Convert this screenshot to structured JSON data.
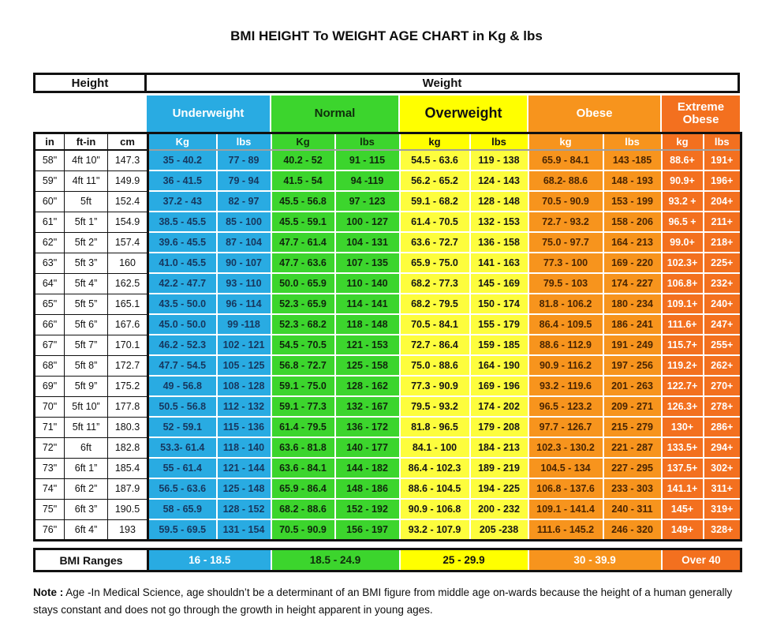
{
  "colors": {
    "underweight_blue": "#29ABE2",
    "normal_green": "#3CD52D",
    "overweight_yellow": "#FFFF00",
    "overweight_cell_yellow": "#FDFD3D",
    "obese_orange": "#F7941D",
    "extreme_obese_orange": "#F3701F",
    "underweight_text": "#17375E",
    "obese_text": "#4A2502",
    "border_black": "#111111",
    "grid_white": "#FFFFFF"
  },
  "chart_data": {
    "type": "table",
    "title": "BMI HEIGHT To WEIGHT AGE CHART in Kg & lbs",
    "header": {
      "height_label": "Height",
      "weight_label": "Weight"
    },
    "height_columns": [
      "in",
      "ft-in",
      "cm"
    ],
    "categories": [
      {
        "label": "Underweight",
        "unit_kg": "Kg",
        "unit_lbs": "lbs",
        "bmi_range": "16 - 18.5"
      },
      {
        "label": "Normal",
        "unit_kg": "Kg",
        "unit_lbs": "lbs",
        "bmi_range": "18.5 - 24.9"
      },
      {
        "label": "Overweight",
        "unit_kg": "kg",
        "unit_lbs": "lbs",
        "bmi_range": "25 - 29.9"
      },
      {
        "label": "Obese",
        "unit_kg": "kg",
        "unit_lbs": "lbs",
        "bmi_range": "30 - 39.9"
      },
      {
        "label": "Extreme Obese",
        "unit_kg": "kg",
        "unit_lbs": "lbs",
        "bmi_range": "Over 40"
      }
    ],
    "bmi_ranges_label": "BMI Ranges",
    "rows": [
      {
        "in": "58\"",
        "ft_in": "4ft 10\"",
        "cm": "147.3",
        "weights": [
          "35 - 40.2",
          "77 - 89",
          "40.2 - 52",
          "91 - 115",
          "54.5 - 63.6",
          "119 - 138",
          "65.9 - 84.1",
          "143 -185",
          "88.6+",
          "191+"
        ]
      },
      {
        "in": "59\"",
        "ft_in": "4ft 11\"",
        "cm": "149.9",
        "weights": [
          "36 - 41.5",
          "79 -  94",
          "41.5 - 54",
          "94 -119",
          "56.2 - 65.2",
          "124 - 143",
          "68.2- 88.6",
          "148 - 193",
          "90.9+",
          "196+"
        ]
      },
      {
        "in": "60\"",
        "ft_in": "5ft",
        "cm": "152.4",
        "weights": [
          "37.2 - 43",
          "82 - 97",
          "45.5 - 56.8",
          "97 -  123",
          "59.1  - 68.2",
          "128 - 148",
          "70.5 - 90.9",
          "153 - 199",
          "93.2 +",
          "204+"
        ]
      },
      {
        "in": "61\"",
        "ft_in": "5ft 1”",
        "cm": "154.9",
        "weights": [
          "38.5 - 45.5",
          "85 -  100",
          "45.5 - 59.1",
          "100 - 127",
          "61.4 - 70.5",
          "132 - 153",
          "72.7 - 93.2",
          "158 - 206",
          "96.5 +",
          "211+"
        ]
      },
      {
        "in": "62\"",
        "ft_in": "5ft 2”",
        "cm": "157.4",
        "weights": [
          "39.6 -  45.5",
          "87 - 104",
          "47.7 - 61.4",
          "104 - 131",
          "63.6 - 72.7",
          "136 - 158",
          "75.0 -  97.7",
          "164 - 213",
          "99.0+",
          "218+"
        ]
      },
      {
        "in": "63\"",
        "ft_in": "5ft 3”",
        "cm": "160",
        "weights": [
          "41.0 - 45.5",
          "90 - 107",
          "47.7  - 63.6",
          "107 - 135",
          "65.9 - 75.0",
          "141 - 163",
          "77.3 - 100",
          "169 - 220",
          "102.3+",
          "225+"
        ]
      },
      {
        "in": "64\"",
        "ft_in": "5ft 4”",
        "cm": "162.5",
        "weights": [
          "42.2 - 47.7",
          "93 - 110",
          "50.0 - 65.9",
          "110 - 140",
          "68.2 - 77.3",
          "145 - 169",
          "79.5 - 103",
          "174 - 227",
          "106.8+",
          "232+"
        ]
      },
      {
        "in": "65\"",
        "ft_in": "5ft 5”",
        "cm": "165.1",
        "weights": [
          "43.5 - 50.0",
          "96 - 114",
          "52.3 - 65.9",
          "114 - 141",
          "68.2 - 79.5",
          "150 - 174",
          "81.8 - 106.2",
          "180 - 234",
          "109.1+",
          "240+"
        ]
      },
      {
        "in": "66\"",
        "ft_in": "5ft 6”",
        "cm": "167.6",
        "weights": [
          "45.0 - 50.0",
          "99 -118",
          "52.3 - 68.2",
          "118 - 148",
          "70.5 - 84.1",
          "155 - 179",
          "86.4 - 109.5",
          "186 - 241",
          "111.6+",
          "247+"
        ]
      },
      {
        "in": "67\"",
        "ft_in": "5ft 7”",
        "cm": "170.1",
        "weights": [
          "46.2 - 52.3",
          "102 - 121",
          "54.5 - 70.5",
          "121 - 153",
          "72.7 - 86.4",
          "159 - 185",
          "88.6 - 112.9",
          "191 - 249",
          "115.7+",
          "255+"
        ]
      },
      {
        "in": "68\"",
        "ft_in": "5ft 8”",
        "cm": "172.7",
        "weights": [
          "47.7 - 54.5",
          "105 - 125",
          "56.8 - 72.7",
          "125 - 158",
          "75.0 - 88.6",
          "164 - 190",
          "90.9 - 116.2",
          "197 - 256",
          "119.2+",
          "262+"
        ]
      },
      {
        "in": "69\"",
        "ft_in": "5ft 9”",
        "cm": "175.2",
        "weights": [
          "49 - 56.8",
          "108 - 128",
          "59.1 - 75.0",
          "128 - 162",
          "77.3 - 90.9",
          "169 - 196",
          "93.2 - 119.6",
          "201 - 263",
          "122.7+",
          "270+"
        ]
      },
      {
        "in": "70\"",
        "ft_in": "5ft 10”",
        "cm": "177.8",
        "weights": [
          "50.5 - 56.8",
          "112 - 132",
          "59.1 - 77.3",
          "132 - 167",
          "79.5 - 93.2",
          "174 - 202",
          "96.5 - 123.2",
          "209 - 271",
          "126.3+",
          "278+"
        ]
      },
      {
        "in": "71\"",
        "ft_in": "5ft 11”",
        "cm": "180.3",
        "weights": [
          "52 - 59.1",
          "115 - 136",
          "61.4 - 79.5",
          "136 - 172",
          "81.8 - 96.5",
          "179 - 208",
          "97.7 - 126.7",
          "215 - 279",
          "130+",
          "286+"
        ]
      },
      {
        "in": "72\"",
        "ft_in": "6ft",
        "cm": "182.8",
        "weights": [
          "53.3- 61.4",
          "118 - 140",
          "63.6 - 81.8",
          "140 - 177",
          "84.1 - 100",
          "184 - 213",
          "102.3 - 130.2",
          "221 - 287",
          "133.5+",
          "294+"
        ]
      },
      {
        "in": "73\"",
        "ft_in": "6ft 1”",
        "cm": "185.4",
        "weights": [
          "55 - 61.4",
          "121 - 144",
          "63.6 - 84.1",
          "144 - 182",
          "86.4 - 102.3",
          "189 - 219",
          "104.5 - 134",
          "227 - 295",
          "137.5+",
          "302+"
        ]
      },
      {
        "in": "74\"",
        "ft_in": "6ft 2”",
        "cm": "187.9",
        "weights": [
          "56.5 - 63.6",
          "125 - 148",
          "65.9 - 86.4",
          "148 - 186",
          "88.6 - 104.5",
          "194 - 225",
          "106.8 - 137.6",
          "233 - 303",
          "141.1+",
          "311+"
        ]
      },
      {
        "in": "75\"",
        "ft_in": "6ft 3”",
        "cm": "190.5",
        "weights": [
          "58 - 65.9",
          "128 - 152",
          "68.2 - 88.6",
          "152 - 192",
          "90.9 - 106.8",
          "200 - 232",
          "109.1 - 141.4",
          "240 - 311",
          "145+",
          "319+"
        ]
      },
      {
        "in": "76\"",
        "ft_in": "6ft 4”",
        "cm": "193",
        "weights": [
          "59.5 - 69.5",
          "131 - 154",
          "70.5 - 90.9",
          "156 - 197",
          "93.2 - 107.9",
          "205 -238",
          "111.6 - 145.2",
          "246 - 320",
          "149+",
          "328+"
        ]
      }
    ]
  },
  "note": {
    "label": "Note :",
    "text": "Age -In Medical Science, age shouldn’t be a determinant of an BMI figure from middle age on-wards because the height of a human generally stays constant and does not go through the growth in height apparent in young ages."
  }
}
